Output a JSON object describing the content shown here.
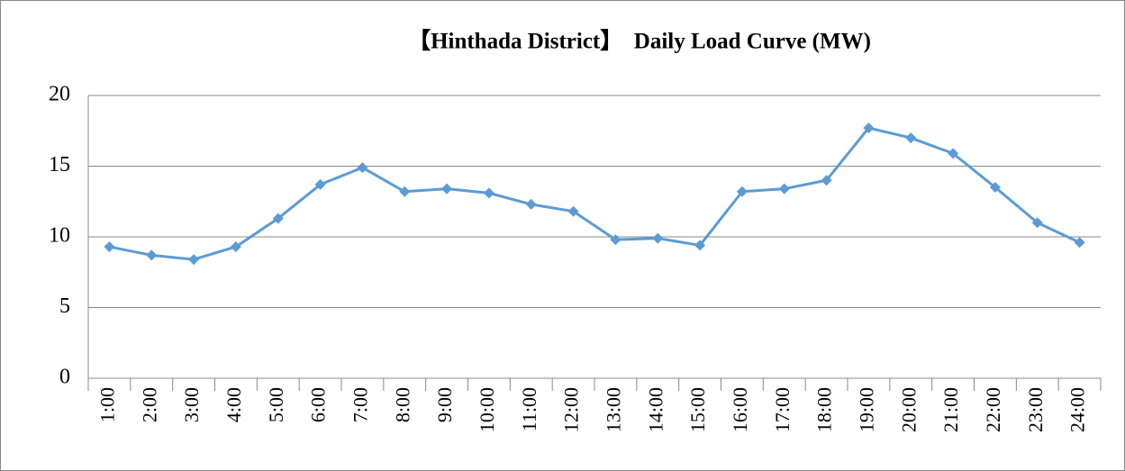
{
  "chart_data": {
    "type": "line",
    "title": "【Hinthada District】　Daily Load Curve (MW)",
    "categories": [
      "1:00",
      "2:00",
      "3:00",
      "4:00",
      "5:00",
      "6:00",
      "7:00",
      "8:00",
      "9:00",
      "10:00",
      "11:00",
      "12:00",
      "13:00",
      "14:00",
      "15:00",
      "16:00",
      "17:00",
      "18:00",
      "19:00",
      "20:00",
      "21:00",
      "22:00",
      "23:00",
      "24:00"
    ],
    "series": [
      {
        "color": "#5b9bd5",
        "values": [
          9.3,
          8.7,
          8.4,
          9.3,
          11.3,
          13.7,
          14.9,
          13.2,
          13.4,
          13.1,
          12.3,
          11.8,
          9.8,
          9.9,
          9.4,
          13.2,
          13.4,
          14.0,
          17.7,
          17.0,
          15.9,
          13.5,
          11.0,
          9.6
        ]
      }
    ],
    "ylim": [
      0,
      20
    ],
    "yticks": [
      0,
      5,
      10,
      15,
      20
    ],
    "grid": true
  }
}
